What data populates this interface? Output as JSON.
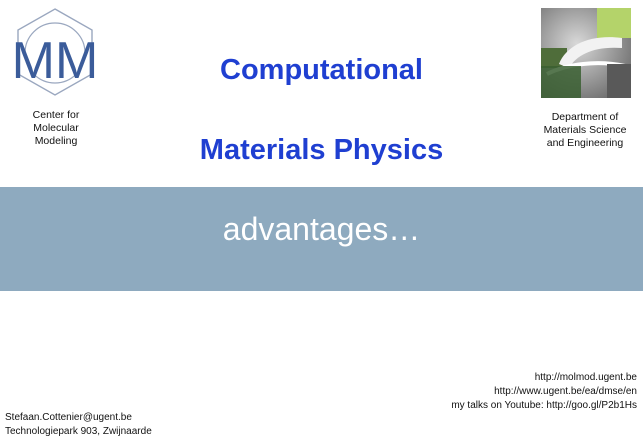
{
  "header": {
    "title_line1": "Computational",
    "title_line2": "Materials Physics",
    "left_logo_text": "MM",
    "left_caption": "Center for\nMolecular\nModeling",
    "right_caption": "Department of\nMaterials Science\nand Engineering"
  },
  "band": {
    "text": "advantages…"
  },
  "footer": {
    "left": [
      "Stefaan.Cottenier@ugent.be",
      "Technologiepark 903, Zwijnaarde"
    ],
    "right": [
      "http://molmod.ugent.be",
      "http://www.ugent.be/ea/dmse/en",
      "my talks on Youtube: http://goo.gl/P2b1Hs"
    ]
  },
  "colors": {
    "title": "#1f3fd1",
    "band": "#8eaabf",
    "mm_logo": "#3b5c9a"
  }
}
